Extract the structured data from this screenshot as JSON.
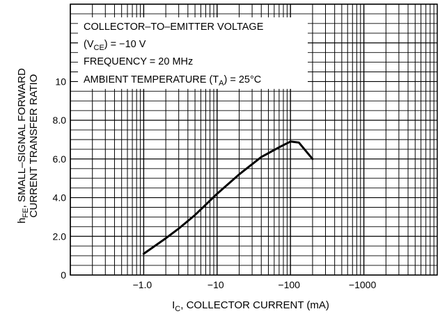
{
  "chart_data": {
    "type": "line",
    "xscale": "log",
    "xlim": [
      0.1,
      10000
    ],
    "ylim": [
      0,
      14
    ],
    "grid": true,
    "x_ticks": [
      {
        "value": 1,
        "label": "−1.0"
      },
      {
        "value": 10,
        "label": "−10"
      },
      {
        "value": 100,
        "label": "−100"
      },
      {
        "value": 1000,
        "label": "−1000"
      }
    ],
    "y_ticks": [
      {
        "value": 0,
        "label": "0"
      },
      {
        "value": 2,
        "label": "2.0"
      },
      {
        "value": 4,
        "label": "4.0"
      },
      {
        "value": 6,
        "label": "6.0"
      },
      {
        "value": 8,
        "label": "8.0"
      },
      {
        "value": 10,
        "label": "10"
      }
    ],
    "xlabel": {
      "main": "I",
      "sub": "C",
      "rest": ", COLLECTOR CURRENT (mA)"
    },
    "ylabel": {
      "line1_main": "h",
      "line1_sub": "FE",
      "line1_rest": ", SMALL–SIGNAL FORWARD",
      "line2": "CURRENT TRANSFER RATIO"
    },
    "conditions": {
      "line1": "COLLECTOR–TO–EMITTER VOLTAGE",
      "line2_pre": "(V",
      "line2_sub": "CE",
      "line2_post": ") = −10 V",
      "line3": "FREQUENCY = 20 MHz",
      "line4_pre": "AMBIENT TEMPERATURE (T",
      "line4_sub": "A",
      "line4_post": ") = 25°C"
    },
    "series": [
      {
        "x": [
          1,
          2,
          3,
          5,
          10,
          20,
          40,
          70,
          100,
          130,
          200
        ],
        "y": [
          1.1,
          1.9,
          2.4,
          3.1,
          4.2,
          5.2,
          6.1,
          6.6,
          6.9,
          6.85,
          6.0
        ]
      }
    ]
  }
}
